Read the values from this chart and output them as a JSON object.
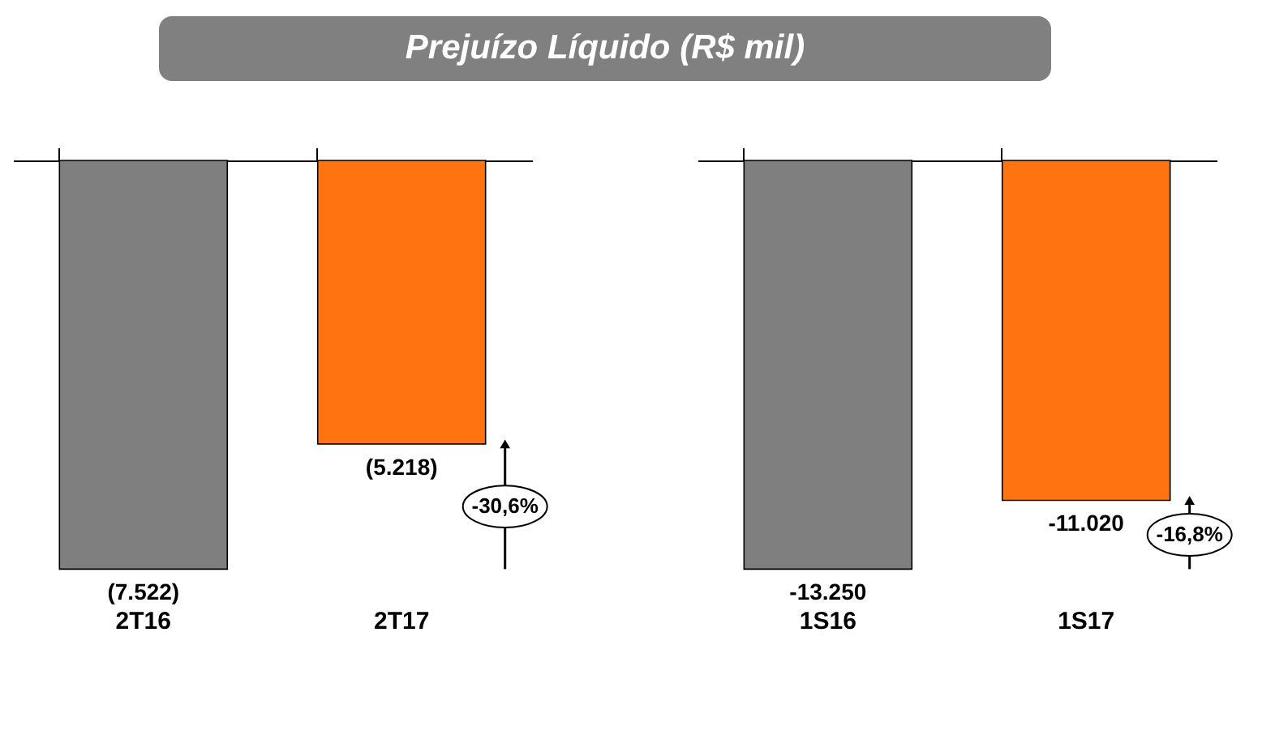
{
  "chart_data": [
    {
      "type": "bar",
      "title": "Prejuízo Líquido (R$ mil)",
      "categories": [
        "2T16",
        "2T17"
      ],
      "values": [
        -7522,
        -5218
      ],
      "colors": [
        "#7f7f7f",
        "#ff7410"
      ],
      "value_labels": [
        "(7.522)",
        "(5.218)"
      ],
      "annotations": [
        "-30,6%"
      ]
    },
    {
      "type": "bar",
      "categories": [
        "1S16",
        "1S17"
      ],
      "values": [
        -13250,
        -11020
      ],
      "colors": [
        "#7f7f7f",
        "#ff7410"
      ],
      "value_labels": [
        "-13.250",
        "-11.020"
      ],
      "annotations": [
        "-16,8%"
      ]
    }
  ]
}
